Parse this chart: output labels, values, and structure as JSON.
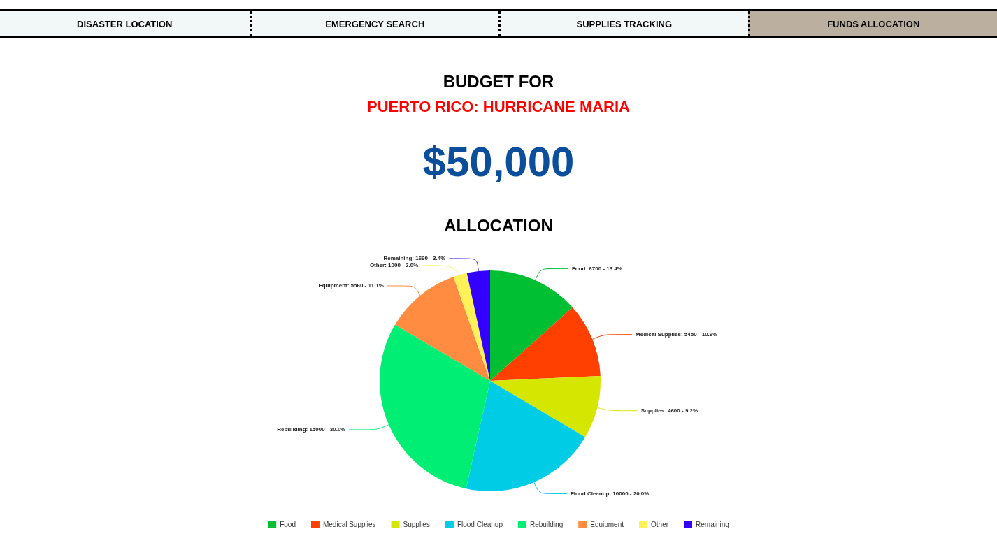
{
  "chart_data": {
    "type": "pie",
    "title": "BUDGET FOR",
    "subtitle": "PUERTO RICO: HURRICANE MARIA",
    "annotations": [
      "DISASTER LOCATION",
      "EMERGENCY SEARCH",
      "SUPPLIES TRACKING",
      "FUNDS ALLOCATION",
      "$50,000",
      "ALLOCATION"
    ],
    "categories": [
      "Food",
      "Medical Supplies",
      "Supplies",
      "Flood Cleanup",
      "Rebuilding",
      "Equipment",
      "Other",
      "Remaining"
    ],
    "values": [
      6700,
      5450,
      4600,
      10000,
      15000,
      5560,
      1000,
      1690
    ],
    "colors": [
      "#00bf33",
      "#ff4000",
      "#d5e600",
      "#00cce6",
      "#00ee73",
      "#ff8c40",
      "#fff259",
      "#3300ff"
    ],
    "value_labels": [
      "Food: 6700 - 13.4%",
      "Medical Supplies: 5450 - 10.9%",
      "Supplies: 4600 - 9.2%",
      "Flood Cleanup: 10000 - 20.0%",
      "Rebuilding: 15000 - 30.0%",
      "Equipment: 5560 - 11.1%",
      "Other: 1000 - 2.0%",
      "Remaining: 1690 - 3.4%"
    ],
    "legend": "bottom"
  }
}
